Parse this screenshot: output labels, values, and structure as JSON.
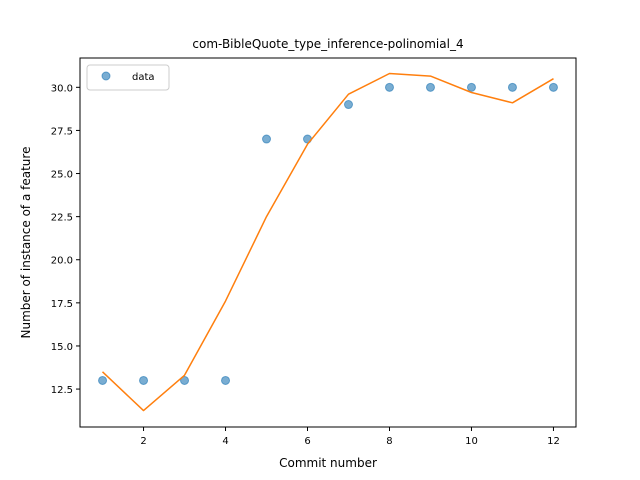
{
  "chart_data": {
    "type": "scatter",
    "title": "com-BibleQuote_type_inference-polinomial_4",
    "xlabel": "Commit number",
    "ylabel": "Number of instance of a feature",
    "xlim": [
      0.45,
      12.55
    ],
    "ylim": [
      10.3,
      31.7
    ],
    "x_ticks": [
      2,
      4,
      6,
      8,
      10,
      12
    ],
    "x_tick_labels": [
      "2",
      "4",
      "6",
      "8",
      "10",
      "12"
    ],
    "y_ticks": [
      12.5,
      15.0,
      17.5,
      20.0,
      22.5,
      25.0,
      27.5,
      30.0
    ],
    "y_tick_labels": [
      "12.5",
      "15.0",
      "17.5",
      "20.0",
      "22.5",
      "25.0",
      "27.5",
      "30.0"
    ],
    "grid": false,
    "legend_position": "top-left",
    "series": [
      {
        "name": "data",
        "kind": "scatter",
        "color": "#1f77b4",
        "x": [
          1,
          2,
          3,
          4,
          5,
          6,
          7,
          8,
          9,
          10,
          11,
          12
        ],
        "y": [
          13,
          13,
          13,
          13,
          27,
          27,
          29,
          30,
          30,
          30,
          30,
          30
        ]
      },
      {
        "kind": "line",
        "color": "#ff7f0e",
        "x": [
          1,
          2,
          3,
          4,
          5,
          6,
          7,
          8,
          9,
          10,
          11,
          12
        ],
        "y": [
          13.5,
          11.25,
          13.3,
          17.6,
          22.5,
          26.7,
          29.6,
          30.8,
          30.65,
          29.7,
          29.1,
          30.5
        ]
      }
    ]
  }
}
